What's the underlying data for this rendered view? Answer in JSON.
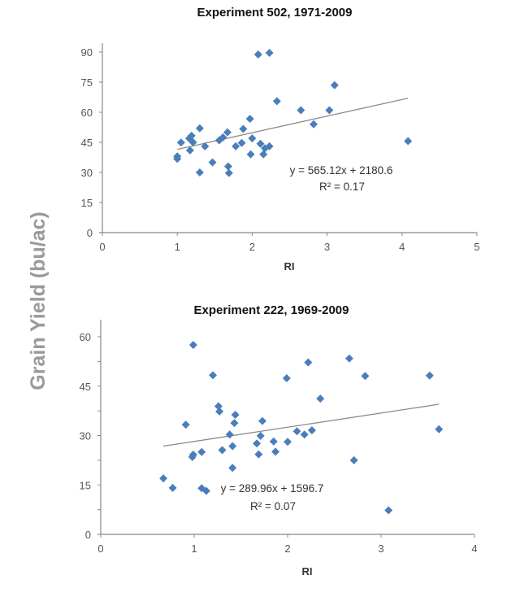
{
  "ylabel": "Grain Yield (bu/ac)",
  "marker_color": "#4a7ebb",
  "trend_color": "#8c8c8c",
  "chart_data": [
    {
      "type": "scatter",
      "title": "Experiment 502, 1971-2009",
      "xlabel": "RI",
      "xlim": [
        0,
        5
      ],
      "ylim": [
        0,
        90
      ],
      "xticks": [
        0,
        1,
        2,
        3,
        4,
        5
      ],
      "yticks": [
        0,
        15,
        30,
        45,
        60,
        75,
        90
      ],
      "grid": false,
      "trendline": {
        "x": [
          1.0,
          4.08
        ],
        "y": [
          41.5,
          67.0
        ]
      },
      "equation": "y = 565.12x + 2180.6",
      "r2": "R² = 0.17",
      "points": [
        [
          1.0,
          36.8
        ],
        [
          1.0,
          38
        ],
        [
          1.05,
          44.9
        ],
        [
          1.16,
          47
        ],
        [
          1.19,
          48.3
        ],
        [
          1.21,
          45
        ],
        [
          1.17,
          41
        ],
        [
          1.3,
          52
        ],
        [
          1.3,
          30
        ],
        [
          1.37,
          43
        ],
        [
          1.47,
          35
        ],
        [
          1.56,
          46
        ],
        [
          1.61,
          47.5
        ],
        [
          1.67,
          50
        ],
        [
          1.68,
          33
        ],
        [
          1.69,
          29.7
        ],
        [
          1.78,
          43
        ],
        [
          1.86,
          44.7
        ],
        [
          1.88,
          51.7
        ],
        [
          1.97,
          56.7
        ],
        [
          1.98,
          39
        ],
        [
          2.0,
          47
        ],
        [
          2.08,
          88.8
        ],
        [
          2.11,
          44.3
        ],
        [
          2.15,
          39
        ],
        [
          2.17,
          42
        ],
        [
          2.23,
          89.6
        ],
        [
          2.23,
          43
        ],
        [
          2.33,
          65.5
        ],
        [
          2.65,
          61
        ],
        [
          2.82,
          54
        ],
        [
          3.03,
          61
        ],
        [
          3.1,
          73.5
        ],
        [
          4.08,
          45.6
        ]
      ]
    },
    {
      "type": "scatter",
      "title": "Experiment 222, 1969-2009",
      "xlabel": "RI",
      "xlim": [
        0,
        4
      ],
      "ylim": [
        0,
        60
      ],
      "xticks": [
        0,
        1,
        2,
        3,
        4
      ],
      "yticks": [
        0,
        15,
        30,
        45,
        60
      ],
      "minor_yticks": [
        7.5,
        22.5,
        37.5,
        52.5
      ],
      "grid": false,
      "trendline": {
        "x": [
          0.67,
          3.62
        ],
        "y": [
          26.8,
          39.5
        ]
      },
      "equation": "y = 289.96x + 1596.7",
      "r2": "R² = 0.07",
      "points": [
        [
          0.67,
          17
        ],
        [
          0.77,
          14.1
        ],
        [
          0.91,
          33.3
        ],
        [
          0.98,
          23.5
        ],
        [
          0.99,
          57.5
        ],
        [
          0.99,
          24.2
        ],
        [
          1.08,
          25
        ],
        [
          1.08,
          14
        ],
        [
          1.13,
          13.2
        ],
        [
          1.2,
          48.3
        ],
        [
          1.26,
          38.9
        ],
        [
          1.27,
          37.3
        ],
        [
          1.3,
          25.6
        ],
        [
          1.38,
          30.3
        ],
        [
          1.41,
          26.8
        ],
        [
          1.41,
          20.2
        ],
        [
          1.43,
          33.8
        ],
        [
          1.44,
          36.3
        ],
        [
          1.67,
          27.6
        ],
        [
          1.69,
          24.3
        ],
        [
          1.71,
          29.9
        ],
        [
          1.73,
          34.4
        ],
        [
          1.85,
          28.2
        ],
        [
          1.87,
          25.1
        ],
        [
          1.99,
          47.4
        ],
        [
          2.0,
          28.1
        ],
        [
          2.1,
          31.3
        ],
        [
          2.18,
          30.3
        ],
        [
          2.22,
          52.2
        ],
        [
          2.26,
          31.6
        ],
        [
          2.35,
          41.2
        ],
        [
          2.66,
          53.4
        ],
        [
          2.71,
          22.5
        ],
        [
          2.83,
          48.1
        ],
        [
          3.08,
          7.3
        ],
        [
          3.52,
          48.2
        ],
        [
          3.62,
          31.9
        ]
      ]
    }
  ]
}
